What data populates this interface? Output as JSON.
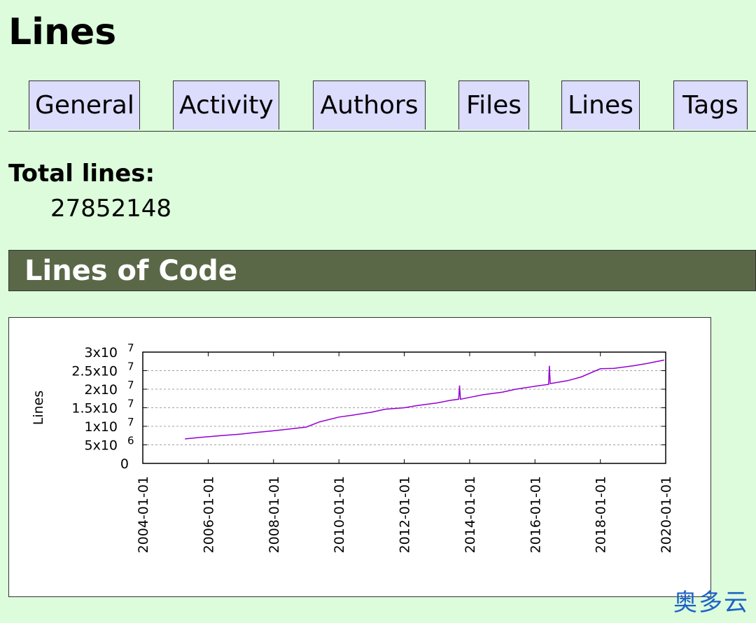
{
  "page": {
    "title": "Lines"
  },
  "tabs": [
    {
      "label": "General"
    },
    {
      "label": "Activity"
    },
    {
      "label": "Authors"
    },
    {
      "label": "Files"
    },
    {
      "label": "Lines"
    },
    {
      "label": "Tags"
    }
  ],
  "summary": {
    "total_label": "Total lines:",
    "total_value": "27852148"
  },
  "section": {
    "title": "Lines of Code"
  },
  "watermark": {
    "text": "奥多云"
  },
  "colors": {
    "background": "#dcfcdc",
    "tab_bg": "#dcdcfc",
    "section_bg": "#5a6848",
    "series": "#9400d3"
  },
  "chart_data": {
    "type": "line",
    "title": "",
    "xlabel": "",
    "ylabel": "Lines",
    "grid": true,
    "legend": "none",
    "ylim": [
      0,
      30000000
    ],
    "xlim": [
      "2004-01-01",
      "2020-01-01"
    ],
    "x_ticks": [
      "2004-01-01",
      "2006-01-01",
      "2008-01-01",
      "2010-01-01",
      "2012-01-01",
      "2014-01-01",
      "2016-01-01",
      "2018-01-01",
      "2020-01-01"
    ],
    "y_ticks": [
      {
        "value": 0,
        "base": "0",
        "exp": ""
      },
      {
        "value": 5000000,
        "base": "5x10",
        "exp": "6"
      },
      {
        "value": 10000000,
        "base": "1x10",
        "exp": "7"
      },
      {
        "value": 15000000,
        "base": "1.5x10",
        "exp": "7"
      },
      {
        "value": 20000000,
        "base": "2x10",
        "exp": "7"
      },
      {
        "value": 25000000,
        "base": "2.5x10",
        "exp": "7"
      },
      {
        "value": 30000000,
        "base": "3x10",
        "exp": "7"
      }
    ],
    "series": [
      {
        "color": "#9400d3",
        "points": [
          [
            "2005-04-16",
            6600000
          ],
          [
            "2005-10-01",
            7000000
          ],
          [
            "2006-06-01",
            7500000
          ],
          [
            "2007-01-01",
            7900000
          ],
          [
            "2007-06-01",
            8300000
          ],
          [
            "2008-01-01",
            8800000
          ],
          [
            "2008-06-01",
            9200000
          ],
          [
            "2009-01-01",
            9800000
          ],
          [
            "2009-06-01",
            11200000
          ],
          [
            "2010-01-01",
            12500000
          ],
          [
            "2010-06-01",
            13000000
          ],
          [
            "2011-01-01",
            13800000
          ],
          [
            "2011-06-01",
            14600000
          ],
          [
            "2012-01-01",
            15000000
          ],
          [
            "2012-06-01",
            15600000
          ],
          [
            "2013-01-01",
            16300000
          ],
          [
            "2013-06-01",
            17000000
          ],
          [
            "2013-09-01",
            17300000
          ],
          [
            "2013-09-10",
            21000000
          ],
          [
            "2013-09-20",
            17300000
          ],
          [
            "2014-01-01",
            17800000
          ],
          [
            "2014-06-01",
            18500000
          ],
          [
            "2015-01-01",
            19200000
          ],
          [
            "2015-06-01",
            20000000
          ],
          [
            "2016-01-01",
            20800000
          ],
          [
            "2016-06-01",
            21300000
          ],
          [
            "2016-06-10",
            26300000
          ],
          [
            "2016-06-20",
            21500000
          ],
          [
            "2017-01-01",
            22300000
          ],
          [
            "2017-06-01",
            23300000
          ],
          [
            "2018-01-01",
            25500000
          ],
          [
            "2018-06-01",
            25600000
          ],
          [
            "2019-01-01",
            26300000
          ],
          [
            "2019-06-01",
            26900000
          ],
          [
            "2019-12-15",
            27850000
          ]
        ]
      }
    ]
  }
}
